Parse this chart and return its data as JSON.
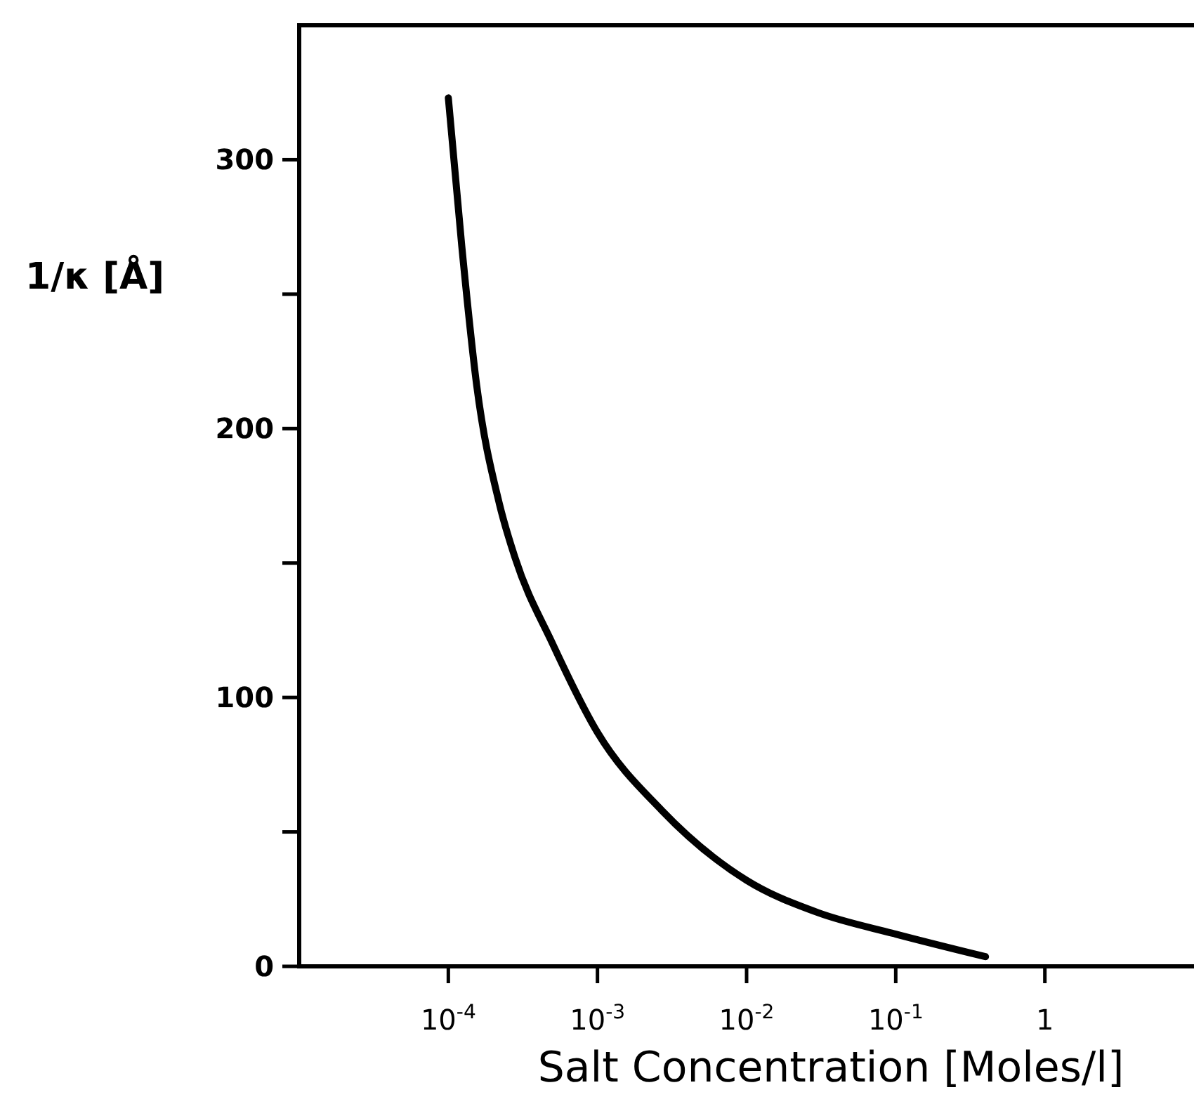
{
  "chart_data": {
    "type": "line",
    "xlabel": "Salt Concentration [Moles/l]",
    "ylabel": "1/κ [Å]",
    "log": "x",
    "grid": false,
    "marker": "none",
    "line_style": "solid",
    "xlim": [
      1e-05,
      10
    ],
    "ylim": [
      0,
      350
    ],
    "xticks": [
      {
        "value": 0.0001,
        "label": "10$^{-4}$"
      },
      {
        "value": 0.001,
        "label": "10$^{-3}$"
      },
      {
        "value": 0.01,
        "label": "10$^{-2}$"
      },
      {
        "value": 0.1,
        "label": "10$^{-1}$"
      },
      1
    ],
    "yticks": [
      0,
      {
        "value": 50,
        "label": null
      },
      100,
      {
        "value": 150,
        "label": null
      },
      200,
      {
        "value": 250,
        "label": null
      },
      300
    ],
    "series": [
      {
        "color": "#000000",
        "x": [
          0.0001,
          0.000123,
          0.000155,
          0.00022,
          0.00028,
          0.0005,
          0.001,
          0.0027,
          0.01,
          0.03,
          0.1,
          0.4
        ],
        "values": [
          323,
          268,
          216,
          172,
          152,
          120,
          87,
          58,
          32,
          20,
          12,
          3.6
        ]
      }
    ]
  }
}
